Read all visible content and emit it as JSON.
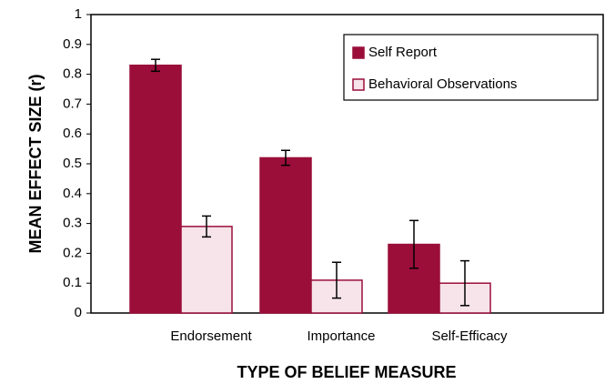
{
  "chart_data": {
    "type": "bar",
    "x_label": "TYPE OF BELIEF MEASURE",
    "y_label": "MEAN EFFECT SIZE (r)",
    "categories": [
      "Endorsement",
      "Importance",
      "Self-Efficacy"
    ],
    "series": [
      {
        "name": "Self Report",
        "color": "#9b0e3a",
        "values": [
          0.83,
          0.52,
          0.23
        ],
        "errors": [
          0.02,
          0.025,
          0.08
        ]
      },
      {
        "name": "Behavioral Observations",
        "color": "#f6e4ea",
        "values": [
          0.29,
          0.11,
          0.1
        ],
        "errors": [
          0.035,
          0.06,
          0.075
        ]
      }
    ],
    "ylim": [
      0,
      1
    ],
    "yticks": [
      0,
      0.1,
      0.2,
      0.3,
      0.4,
      0.5,
      0.6,
      0.7,
      0.8,
      0.9,
      1
    ],
    "grid": false,
    "legend": "upper right"
  }
}
